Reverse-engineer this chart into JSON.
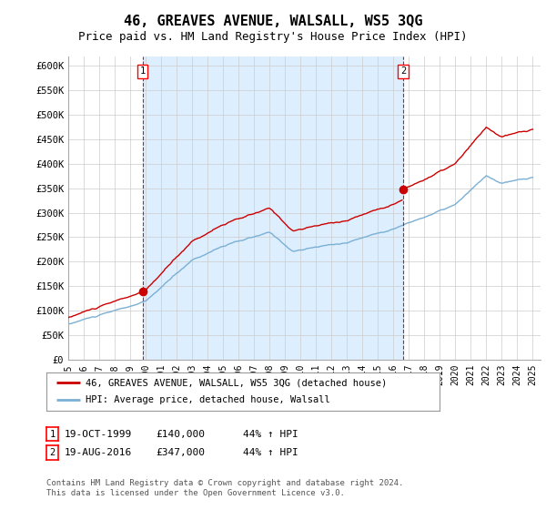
{
  "title": "46, GREAVES AVENUE, WALSALL, WS5 3QG",
  "subtitle": "Price paid vs. HM Land Registry's House Price Index (HPI)",
  "ylim": [
    0,
    620000
  ],
  "yticks": [
    0,
    50000,
    100000,
    150000,
    200000,
    250000,
    300000,
    350000,
    400000,
    450000,
    500000,
    550000,
    600000
  ],
  "ytick_labels": [
    "£0",
    "£50K",
    "£100K",
    "£150K",
    "£200K",
    "£250K",
    "£300K",
    "£350K",
    "£400K",
    "£450K",
    "£500K",
    "£550K",
    "£600K"
  ],
  "purchase1_date": 1999.8,
  "purchase1_price": 140000,
  "purchase2_date": 2016.63,
  "purchase2_price": 347000,
  "line1_color": "#cc0000",
  "line2_color": "#7ab0d4",
  "shade_color": "#ddeeff",
  "vline_color": "#cc0000",
  "legend_label1": "46, GREAVES AVENUE, WALSALL, WS5 3QG (detached house)",
  "legend_label2": "HPI: Average price, detached house, Walsall",
  "ann1_text": "19-OCT-1999",
  "ann1_price": "£140,000",
  "ann1_hpi": "44% ↑ HPI",
  "ann2_text": "19-AUG-2016",
  "ann2_price": "£347,000",
  "ann2_hpi": "44% ↑ HPI",
  "footer": "Contains HM Land Registry data © Crown copyright and database right 2024.\nThis data is licensed under the Open Government Licence v3.0.",
  "bg_color": "#ffffff",
  "grid_color": "#cccccc",
  "title_fontsize": 11,
  "subtitle_fontsize": 9
}
